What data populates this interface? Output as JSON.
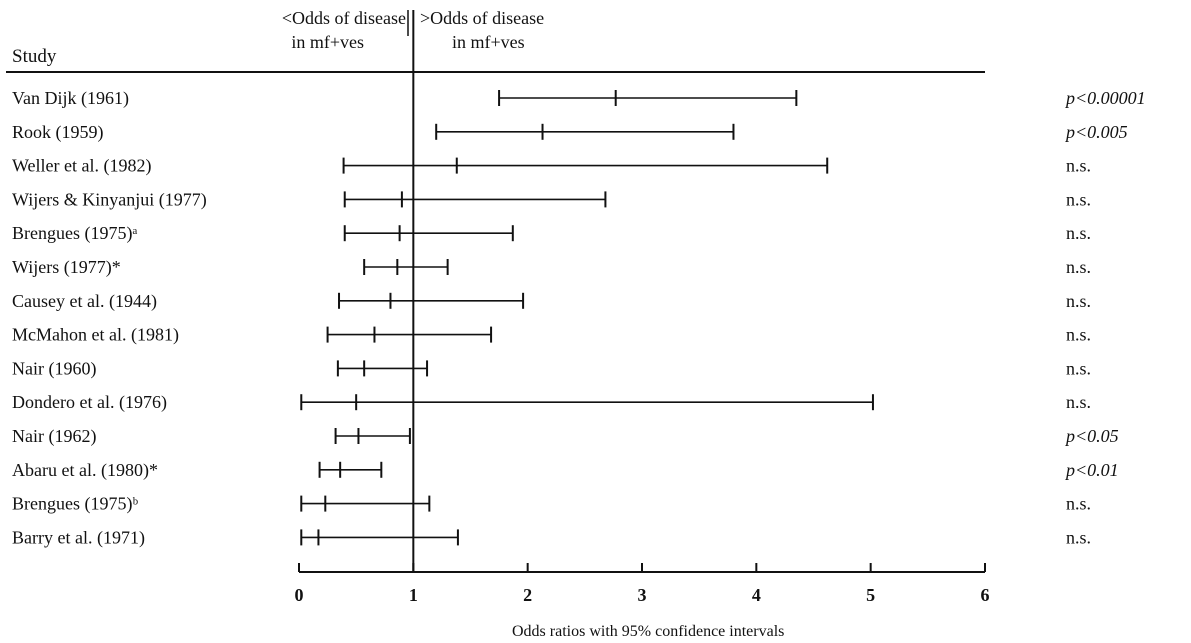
{
  "chart_data": {
    "type": "forest",
    "header": {
      "column_label": "Study",
      "left_note_line1": "<Odds of disease",
      "left_note_line2": "in mf+ves",
      "right_note_line1": ">Odds of disease",
      "right_note_line2": "in mf+ves"
    },
    "xlabel": "Odds ratios with 95% confidence intervals",
    "xlim": [
      0,
      6
    ],
    "xticks": [
      "0",
      "1",
      "2",
      "3",
      "4",
      "5",
      "6"
    ],
    "reference_line": 1,
    "studies": [
      {
        "name": "Van Dijk (1961)",
        "or": 2.77,
        "lo": 1.75,
        "hi": 4.35,
        "p": "p<0.00001"
      },
      {
        "name": "Rook (1959)",
        "or": 2.13,
        "lo": 1.2,
        "hi": 3.8,
        "p": "p<0.005"
      },
      {
        "name": "Weller et al. (1982)",
        "or": 1.38,
        "lo": 0.39,
        "hi": 4.62,
        "p": "n.s."
      },
      {
        "name": "Wijers & Kinyanjui (1977)",
        "or": 0.9,
        "lo": 0.4,
        "hi": 2.68,
        "p": "n.s."
      },
      {
        "name": "Brengues (1975)ᵃ",
        "or": 0.88,
        "lo": 0.4,
        "hi": 1.87,
        "p": "n.s."
      },
      {
        "name": "Wijers (1977)*",
        "or": 0.86,
        "lo": 0.57,
        "hi": 1.3,
        "p": "n.s."
      },
      {
        "name": "Causey et al. (1944)",
        "or": 0.8,
        "lo": 0.35,
        "hi": 1.96,
        "p": "n.s."
      },
      {
        "name": "McMahon et al. (1981)",
        "or": 0.66,
        "lo": 0.25,
        "hi": 1.68,
        "p": "n.s."
      },
      {
        "name": "Nair (1960)",
        "or": 0.57,
        "lo": 0.34,
        "hi": 1.12,
        "p": "n.s."
      },
      {
        "name": "Dondero et al. (1976)",
        "or": 0.5,
        "lo": 0.02,
        "hi": 5.02,
        "p": "n.s."
      },
      {
        "name": "Nair (1962)",
        "or": 0.52,
        "lo": 0.32,
        "hi": 0.97,
        "p": "p<0.05"
      },
      {
        "name": "Abaru et al. (1980)*",
        "or": 0.36,
        "lo": 0.18,
        "hi": 0.72,
        "p": "p<0.01"
      },
      {
        "name": "Brengues (1975)ᵇ",
        "or": 0.23,
        "lo": 0.02,
        "hi": 1.14,
        "p": "n.s."
      },
      {
        "name": "Barry et al. (1971)",
        "or": 0.17,
        "lo": 0.02,
        "hi": 1.39,
        "p": "n.s."
      }
    ]
  }
}
